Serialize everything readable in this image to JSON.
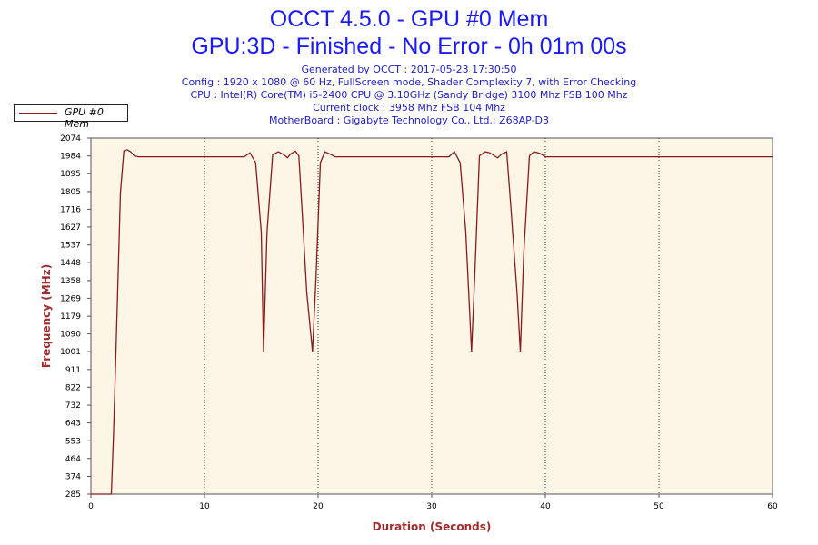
{
  "header": {
    "title": "OCCT 4.5.0 - GPU #0 Mem",
    "subtitle": "GPU:3D - Finished - No Error - 0h 01m 00s",
    "info_lines": [
      "Generated by OCCT : 2017-05-23 17:30:50",
      "Config : 1920 x 1080 @ 60 Hz, FullScreen mode, Shader Complexity 7, with Error Checking",
      "CPU : Intel(R) Core(TM) i5-2400 CPU @ 3.10GHz (Sandy Bridge) 3100 Mhz FSB 100 Mhz",
      "Current clock : 3958 Mhz FSB 104 Mhz",
      "MotherBoard : Gigabyte Technology Co., Ltd.: Z68AP-D3"
    ]
  },
  "legend": {
    "label": "GPU #0 Mem",
    "position": "top-left"
  },
  "colors": {
    "line": "#8b1a1a",
    "plot_bg": "#fdf5e6",
    "axis_label": "#a52a2a",
    "title": "#1a1aff",
    "info": "#2020cc"
  },
  "chart_data": {
    "type": "line",
    "title": "OCCT 4.5.0 - GPU #0 Mem",
    "xlabel": "Duration (Seconds)",
    "ylabel": "Frequency (MHz)",
    "xlim": [
      0,
      60
    ],
    "ylim": [
      285,
      2074
    ],
    "x_ticks": [
      "0",
      "10",
      "20",
      "30",
      "40",
      "50",
      "60"
    ],
    "y_ticks": [
      "2074",
      "1984",
      "1895",
      "1805",
      "1716",
      "1627",
      "1537",
      "1448",
      "1358",
      "1269",
      "1179",
      "1090",
      "1001",
      "911",
      "822",
      "732",
      "643",
      "553",
      "464",
      "374",
      "285"
    ],
    "grid": "vertical dotted",
    "series": [
      {
        "name": "GPU #0 Mem",
        "x": [
          0,
          1.2,
          1.8,
          2.0,
          2.3,
          2.6,
          2.9,
          3.2,
          3.5,
          3.8,
          4.2,
          13.5,
          14.0,
          14.5,
          15.0,
          15.2,
          15.5,
          16.0,
          16.5,
          17.0,
          17.3,
          17.6,
          18.0,
          18.3,
          18.6,
          19.0,
          19.5,
          19.8,
          20.2,
          20.6,
          21.0,
          21.5,
          31.5,
          32.0,
          32.5,
          33.0,
          33.5,
          33.8,
          34.2,
          34.7,
          35.1,
          35.5,
          35.8,
          36.2,
          36.6,
          37.0,
          37.5,
          37.8,
          38.1,
          38.6,
          39.0,
          39.5,
          40.0,
          60
        ],
        "y": [
          285,
          285,
          285,
          600,
          1200,
          1800,
          2010,
          2015,
          2005,
          1985,
          1980,
          1980,
          2000,
          1950,
          1600,
          1001,
          1600,
          1990,
          2005,
          1990,
          1975,
          1995,
          2008,
          1985,
          1700,
          1300,
          1001,
          1350,
          1950,
          2005,
          1995,
          1980,
          1980,
          2005,
          1950,
          1600,
          1001,
          1400,
          1985,
          2005,
          2000,
          1985,
          1975,
          1995,
          2005,
          1700,
          1300,
          1001,
          1500,
          1985,
          2005,
          1998,
          1980,
          1980
        ]
      }
    ]
  }
}
